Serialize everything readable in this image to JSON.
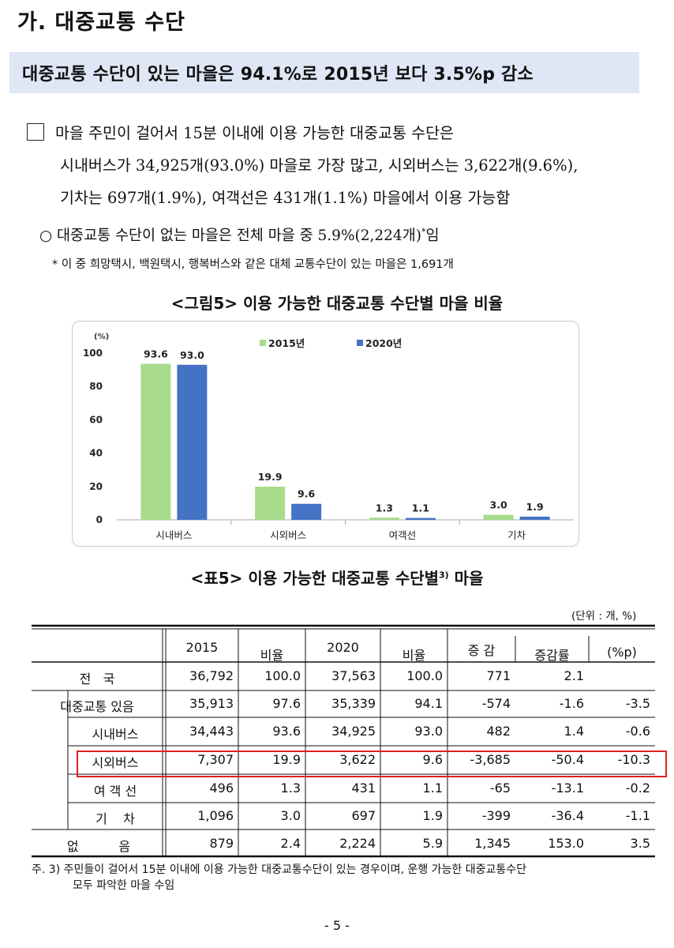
{
  "heading": "가. 대중교통 수단",
  "banner": "대중교통 수단이 있는 마을은 94.1%로 2015년 보다 3.5%p 감소",
  "paragraph": {
    "line1": "마을 주민이 걸어서 15분 이내에 이용 가능한 대중교통 수단은",
    "line2": "시내버스가 34,925개(93.0%) 마을로 가장 많고, 시외버스는 3,622개(9.6%),",
    "line3": "기차는 697개(1.9%), 여객선은 431개(1.1%) 마을에서 이용 가능함"
  },
  "sub_point": {
    "text": "○  대중교통 수단이 없는 마을은 전체 마을 중 5.9%(2,224개)",
    "mark": "*",
    "tail": "임"
  },
  "note": "* 이 중 희망택시, 백원택시, 행복버스와 같은 대체 교통수단이 있는 마을은 1,691개",
  "figure_title": "<그림5> 이용 가능한 대중교통 수단별 마을 비율",
  "chart_data": {
    "type": "bar",
    "ylabel": "(%)",
    "ylim": [
      0,
      100
    ],
    "yticks": [
      "100",
      "80",
      "60",
      "40",
      "20",
      "0"
    ],
    "categories": [
      "시내버스",
      "시외버스",
      "여객선",
      "기차"
    ],
    "series": [
      {
        "name": "2015년",
        "color": "#a8dc8c",
        "values": [
          93.6,
          19.9,
          1.3,
          3.0
        ],
        "labels": [
          "93.6",
          "19.9",
          "1.3",
          "3.0"
        ]
      },
      {
        "name": "2020년",
        "color": "#4472c4",
        "values": [
          93.0,
          9.6,
          1.1,
          1.9
        ],
        "labels": [
          "93.0",
          "9.6",
          "1.1",
          "1.9"
        ]
      }
    ],
    "legend": "top"
  },
  "table_title": "<표5> 이용 가능한 대중교통 수단별",
  "table_title_sup": "3)",
  "table_title_tail": " 마을",
  "unit": "(단위 : 개, %)",
  "table": {
    "headers": [
      "2015",
      "비율",
      "2020",
      "비율",
      "증  감",
      "증감률",
      "(%p)"
    ],
    "rows": [
      {
        "label": "전   국",
        "cells": [
          "36,792",
          "100.0",
          "37,563",
          "100.0",
          "771",
          "2.1",
          ""
        ]
      },
      {
        "label": "대중교통 있음",
        "cells": [
          "35,913",
          "97.6",
          "35,339",
          "94.1",
          "-574",
          "-1.6",
          "-3.5"
        ]
      },
      {
        "label": "시내버스",
        "cells": [
          "34,443",
          "93.6",
          "34,925",
          "93.0",
          "482",
          "1.4",
          "-0.6"
        ]
      },
      {
        "label": "시외버스",
        "cells": [
          "7,307",
          "19.9",
          "3,622",
          "9.6",
          "-3,685",
          "-50.4",
          "-10.3"
        ]
      },
      {
        "label": "여 객 선",
        "cells": [
          "496",
          "1.3",
          "431",
          "1.1",
          "-65",
          "-13.1",
          "-0.2"
        ]
      },
      {
        "label": "기    차",
        "cells": [
          "1,096",
          "3.0",
          "697",
          "1.9",
          "-399",
          "-36.4",
          "-1.1"
        ]
      },
      {
        "label": "없          음",
        "cells": [
          "879",
          "2.4",
          "2,224",
          "5.9",
          "1,345",
          "153.0",
          "3.5"
        ]
      }
    ]
  },
  "footnote": {
    "line1": "주. 3) 주민들이 걸어서 15분 이내에 이용 가능한 대중교통수단이 있는 경우이며, 운행 가능한 대중교통수단",
    "line2": "모두 파악한 마을 수임"
  },
  "page_number": "- 5 -"
}
